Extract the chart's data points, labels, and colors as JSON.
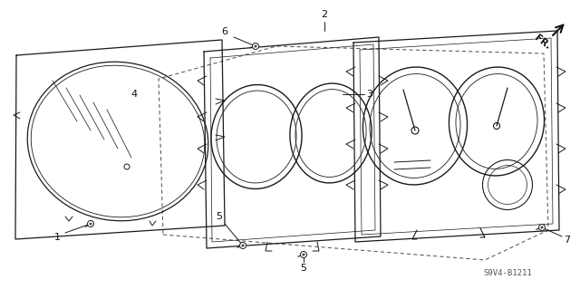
{
  "background_color": "#ffffff",
  "line_color": "#1a1a1a",
  "text_color": "#111111",
  "fig_width": 6.4,
  "fig_height": 3.19,
  "dpi": 100,
  "diagram_code": "S9V4-B1211"
}
